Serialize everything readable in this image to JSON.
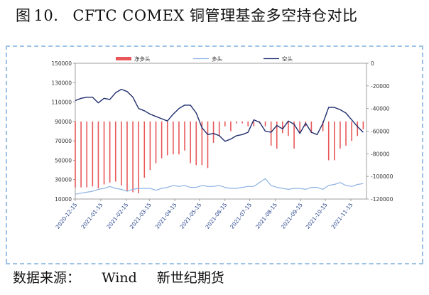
{
  "figure": {
    "label": "图",
    "number": "10.",
    "title": "CFTC COMEX 铜管理基金多空持仓对比"
  },
  "footer": {
    "source_label": "数据来源：",
    "source_1": "Wind",
    "source_2": "新世纪期货"
  },
  "colors": {
    "net": "#e8585a",
    "long": "#8db3e2",
    "short": "#1f2d6e",
    "axis": "#888888",
    "tick_text": "#1f3c88",
    "border": "#9dc3e6"
  },
  "chart_data": {
    "type": "line",
    "title": "",
    "legend": {
      "placement": "top",
      "entries": [
        "净多头",
        "多头",
        "空头"
      ]
    },
    "x_ticks": [
      "2020-12-15",
      "2021-01-15",
      "2021-02-15",
      "2021-03-15",
      "2021-04-15",
      "2021-05-15",
      "2021-06-15",
      "2021-07-15",
      "2021-08-15",
      "2021-09-15",
      "2021-10-15",
      "2021-11-15"
    ],
    "y_left": {
      "range": [
        10000,
        150000
      ],
      "ticks": [
        "10000",
        "30000",
        "50000",
        "70000",
        "90000",
        "110000",
        "130000",
        "150000"
      ]
    },
    "y_right": {
      "range": [
        -120000,
        0
      ],
      "ticks": [
        "0",
        "-20000",
        "-40000",
        "-60000",
        "-80000",
        "-100000",
        "-120000"
      ]
    },
    "x": [
      "2020-12-15",
      "2020-12-22",
      "2020-12-29",
      "2021-01-05",
      "2021-01-12",
      "2021-01-19",
      "2021-01-26",
      "2021-02-02",
      "2021-02-09",
      "2021-02-16",
      "2021-02-23",
      "2021-03-02",
      "2021-03-09",
      "2021-03-16",
      "2021-03-23",
      "2021-03-30",
      "2021-04-06",
      "2021-04-13",
      "2021-04-20",
      "2021-04-27",
      "2021-05-04",
      "2021-05-11",
      "2021-05-18",
      "2021-05-25",
      "2021-06-01",
      "2021-06-08",
      "2021-06-15",
      "2021-06-22",
      "2021-06-29",
      "2021-07-06",
      "2021-07-13",
      "2021-07-20",
      "2021-07-27",
      "2021-08-03",
      "2021-08-10",
      "2021-08-17",
      "2021-08-24",
      "2021-08-31",
      "2021-09-07",
      "2021-09-14",
      "2021-09-21",
      "2021-09-28",
      "2021-10-05",
      "2021-10-12",
      "2021-10-19",
      "2021-10-26",
      "2021-11-02",
      "2021-11-09",
      "2021-11-16",
      "2021-11-23",
      "2021-11-30"
    ],
    "series": [
      {
        "name": "净多头",
        "kind": "bar",
        "axis": "left",
        "values": [
          22000,
          22000,
          22000,
          23000,
          21000,
          25000,
          27000,
          28000,
          24000,
          18000,
          17000,
          16000,
          32000,
          40000,
          47000,
          52000,
          55000,
          56000,
          56000,
          60000,
          47000,
          45000,
          45000,
          42000,
          68000,
          75000,
          85000,
          80000,
          88000,
          88000,
          85000,
          85000,
          88000,
          85000,
          65000,
          62000,
          78000,
          75000,
          62000,
          78000,
          85000,
          78000,
          90000,
          80000,
          50000,
          50000,
          62000,
          65000,
          70000,
          75000,
          82000
        ]
      },
      {
        "name": "多头",
        "kind": "line",
        "axis": "left",
        "values": [
          15000,
          16000,
          17000,
          18000,
          20000,
          21000,
          23000,
          21000,
          20000,
          18000,
          20000,
          21000,
          21000,
          21000,
          19000,
          21000,
          22000,
          24000,
          23000,
          24000,
          22000,
          22000,
          24000,
          23000,
          23000,
          24000,
          22000,
          21000,
          21000,
          22000,
          23000,
          23000,
          27000,
          31000,
          24000,
          22000,
          21000,
          20000,
          21000,
          21000,
          20000,
          22000,
          22000,
          20000,
          24000,
          25000,
          27000,
          24000,
          23000,
          25000,
          26000
        ]
      },
      {
        "name": "空头",
        "kind": "line",
        "axis": "right",
        "values": [
          -33000,
          -31000,
          -30000,
          -30000,
          -35000,
          -31000,
          -32000,
          -26000,
          -23000,
          -25000,
          -30000,
          -40000,
          -42000,
          -45000,
          -47000,
          -49000,
          -51000,
          -45000,
          -40000,
          -37000,
          -37000,
          -44000,
          -57000,
          -63000,
          -62000,
          -64000,
          -69000,
          -67000,
          -64000,
          -63000,
          -61000,
          -50000,
          -52000,
          -60000,
          -61000,
          -55000,
          -58000,
          -51000,
          -54000,
          -62000,
          -53000,
          -61000,
          -63000,
          -53000,
          -39000,
          -39000,
          -41000,
          -44000,
          -50000,
          -56000,
          -61000
        ]
      }
    ]
  }
}
